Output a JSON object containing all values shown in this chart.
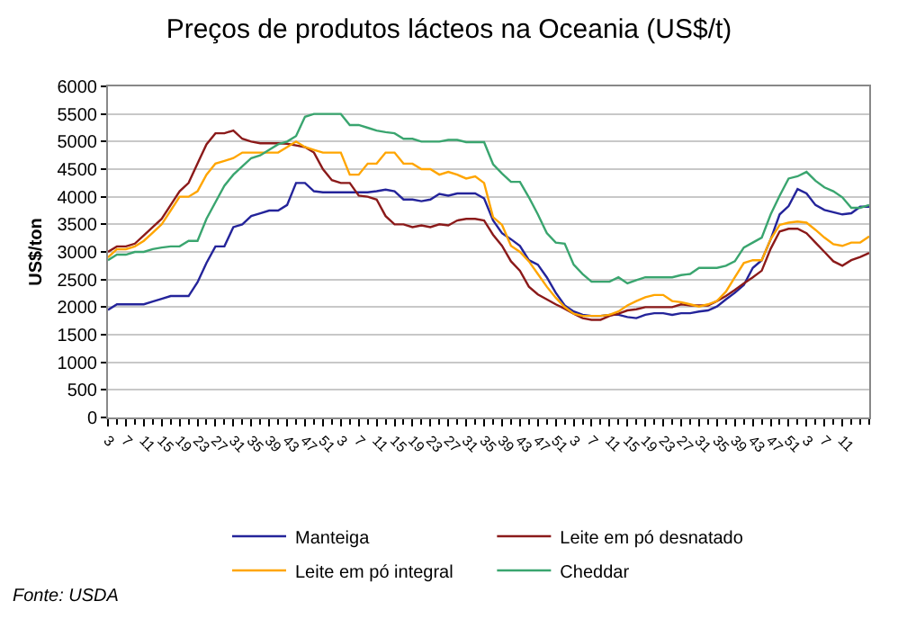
{
  "chart_data": {
    "type": "line",
    "title": "Preços de produtos lácteos na Oceania (US$/t)",
    "ylabel": "US$/ton",
    "categories": [
      "3",
      null,
      "7",
      null,
      "11",
      null,
      "15",
      null,
      "19",
      null,
      "23",
      null,
      "27",
      null,
      "31",
      null,
      "35",
      null,
      "39",
      null,
      "43",
      null,
      "47",
      null,
      "51",
      null,
      "3",
      null,
      "7",
      null,
      "11",
      null,
      "15",
      null,
      "19",
      null,
      "23",
      null,
      "27",
      null,
      "31",
      null,
      "35",
      null,
      "39",
      null,
      "43",
      null,
      "47",
      null,
      "51",
      null,
      "3",
      null,
      "7",
      null,
      "11",
      null,
      "15",
      null,
      "19",
      null,
      "23",
      null,
      "27",
      null,
      "31",
      null,
      "35",
      null,
      "39",
      null,
      "43",
      null,
      "47",
      null,
      "51",
      null,
      "3",
      null,
      "7",
      null,
      "11",
      null,
      null,
      null
    ],
    "series": [
      {
        "name": "Manteiga",
        "color": "#24249a",
        "values": [
          1950,
          2050,
          2050,
          2050,
          2050,
          2100,
          2150,
          2200,
          2200,
          2200,
          2450,
          2800,
          3100,
          3100,
          3450,
          3500,
          3650,
          3700,
          3750,
          3750,
          3850,
          4250,
          4250,
          4100,
          4080,
          4080,
          4080,
          4080,
          4080,
          4080,
          4100,
          4130,
          4100,
          3950,
          3950,
          3920,
          3950,
          4050,
          4020,
          4060,
          4060,
          4060,
          3970,
          3570,
          3340,
          3230,
          3110,
          2850,
          2770,
          2540,
          2260,
          2030,
          1920,
          1860,
          1840,
          1840,
          1860,
          1860,
          1820,
          1800,
          1860,
          1890,
          1890,
          1860,
          1890,
          1890,
          1920,
          1940,
          2010,
          2140,
          2260,
          2400,
          2710,
          2850,
          3230,
          3680,
          3830,
          4140,
          4060,
          3850,
          3760,
          3720,
          3680,
          3700,
          3820,
          3820
        ]
      },
      {
        "name": "Leite em pó desnatado",
        "color": "#8b1a1a",
        "values": [
          3000,
          3100,
          3100,
          3150,
          3300,
          3450,
          3600,
          3850,
          4100,
          4250,
          4600,
          4950,
          5150,
          5150,
          5200,
          5050,
          5000,
          4970,
          4970,
          4970,
          4960,
          4930,
          4900,
          4800,
          4500,
          4300,
          4250,
          4250,
          4020,
          4000,
          3950,
          3650,
          3500,
          3500,
          3450,
          3480,
          3450,
          3500,
          3480,
          3570,
          3600,
          3600,
          3570,
          3310,
          3110,
          2830,
          2660,
          2370,
          2230,
          2140,
          2050,
          1970,
          1880,
          1800,
          1770,
          1770,
          1840,
          1880,
          1940,
          1960,
          2000,
          2000,
          2000,
          2000,
          2050,
          2030,
          2030,
          2030,
          2110,
          2200,
          2310,
          2430,
          2540,
          2660,
          3060,
          3370,
          3420,
          3420,
          3340,
          3170,
          3000,
          2830,
          2750,
          2850,
          2910,
          2980
        ]
      },
      {
        "name": "Leite em pó integral",
        "color": "#ffa500",
        "values": [
          2900,
          3050,
          3050,
          3100,
          3200,
          3350,
          3500,
          3750,
          4000,
          4000,
          4100,
          4400,
          4600,
          4650,
          4700,
          4800,
          4800,
          4800,
          4800,
          4800,
          4900,
          5000,
          4900,
          4850,
          4800,
          4800,
          4800,
          4400,
          4400,
          4600,
          4600,
          4800,
          4800,
          4600,
          4600,
          4500,
          4500,
          4400,
          4450,
          4400,
          4330,
          4370,
          4250,
          3630,
          3490,
          3110,
          3000,
          2830,
          2600,
          2370,
          2170,
          2000,
          1880,
          1840,
          1840,
          1840,
          1860,
          1920,
          2030,
          2110,
          2180,
          2220,
          2220,
          2110,
          2090,
          2050,
          2010,
          2050,
          2110,
          2280,
          2540,
          2800,
          2850,
          2850,
          3230,
          3490,
          3530,
          3550,
          3530,
          3400,
          3260,
          3140,
          3110,
          3170,
          3170,
          3280
        ]
      },
      {
        "name": "Cheddar",
        "color": "#3aa56f",
        "values": [
          2850,
          2950,
          2950,
          3000,
          3000,
          3050,
          3080,
          3100,
          3100,
          3200,
          3200,
          3600,
          3900,
          4200,
          4400,
          4550,
          4700,
          4750,
          4850,
          4950,
          5000,
          5100,
          5450,
          5500,
          5500,
          5500,
          5500,
          5300,
          5300,
          5250,
          5200,
          5170,
          5150,
          5050,
          5050,
          5000,
          5000,
          5000,
          5030,
          5030,
          4990,
          4990,
          4990,
          4590,
          4420,
          4270,
          4270,
          3990,
          3680,
          3340,
          3170,
          3150,
          2770,
          2600,
          2460,
          2460,
          2460,
          2540,
          2430,
          2490,
          2540,
          2540,
          2540,
          2540,
          2580,
          2600,
          2710,
          2710,
          2710,
          2750,
          2830,
          3080,
          3170,
          3260,
          3680,
          4020,
          4330,
          4370,
          4450,
          4290,
          4170,
          4100,
          3990,
          3800,
          3800,
          3850
        ]
      }
    ],
    "ylim": [
      0,
      6000
    ],
    "yticks": [
      0,
      500,
      1000,
      1500,
      2000,
      2500,
      3000,
      3500,
      4000,
      4500,
      5000,
      5500,
      6000
    ],
    "grid": "y",
    "legend": "bottom",
    "marker": "none",
    "line_style": "solid",
    "annotations": [
      "Fonte: USDA"
    ]
  }
}
